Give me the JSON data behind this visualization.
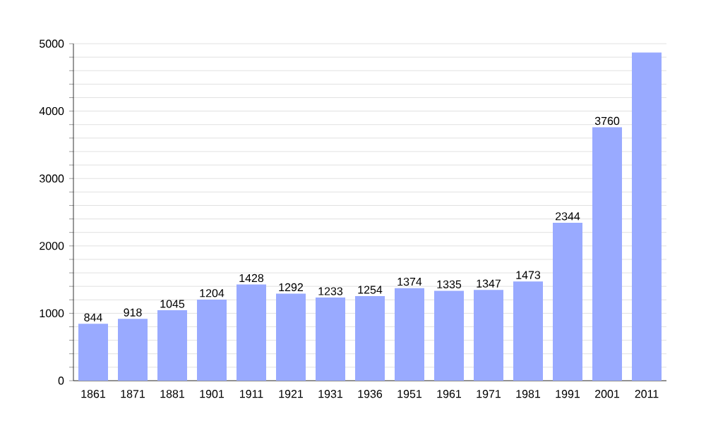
{
  "chart_data": {
    "type": "bar",
    "categories": [
      "1861",
      "1871",
      "1881",
      "1901",
      "1911",
      "1921",
      "1931",
      "1936",
      "1951",
      "1961",
      "1971",
      "1981",
      "1991",
      "2001",
      "2011"
    ],
    "values": [
      844,
      918,
      1045,
      1204,
      1428,
      1292,
      1233,
      1254,
      1374,
      1335,
      1347,
      1473,
      2344,
      3760,
      4870
    ],
    "value_labels": [
      "844",
      "918",
      "1045",
      "1204",
      "1428",
      "1292",
      "1233",
      "1254",
      "1374",
      "1335",
      "1347",
      "1473",
      "2344",
      "3760",
      null
    ],
    "color": "#99aaff",
    "ylim": [
      0,
      5000
    ],
    "yticks": [
      0,
      {
        "value": 200,
        "label": null
      },
      {
        "value": 400,
        "label": null
      },
      {
        "value": 600,
        "label": null
      },
      {
        "value": 800,
        "label": null
      },
      1000,
      {
        "value": 1200,
        "label": null
      },
      {
        "value": 1400,
        "label": null
      },
      {
        "value": 1600,
        "label": null
      },
      {
        "value": 1800,
        "label": null
      },
      2000,
      {
        "value": 2200,
        "label": null
      },
      {
        "value": 2400,
        "label": null
      },
      {
        "value": 2600,
        "label": null
      },
      {
        "value": 2800,
        "label": null
      },
      3000,
      {
        "value": 3200,
        "label": null
      },
      {
        "value": 3400,
        "label": null
      },
      {
        "value": 3600,
        "label": null
      },
      {
        "value": 3800,
        "label": null
      },
      4000,
      {
        "value": 4200,
        "label": null
      },
      {
        "value": 4400,
        "label": null
      },
      {
        "value": 4600,
        "label": null
      },
      {
        "value": 4800,
        "label": null
      },
      5000
    ],
    "grid": "y"
  }
}
